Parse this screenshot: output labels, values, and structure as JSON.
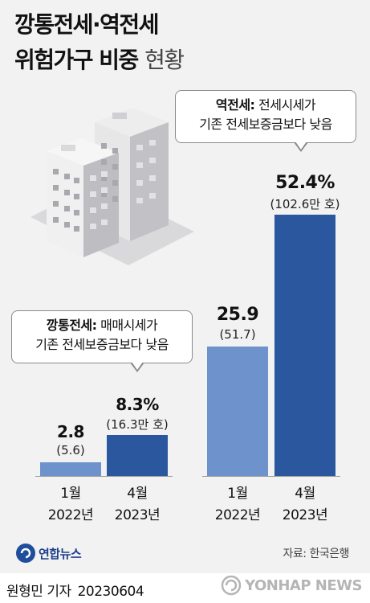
{
  "title": {
    "line1": "깡통전세·역전세",
    "line2_main": "위험가구 비중",
    "line2_light": "현황"
  },
  "callouts": {
    "reverse": {
      "head": "역전세:",
      "text1": " 전세시세가",
      "text2": "기존 전세보증금보다 낮음"
    },
    "empty": {
      "head": "깡통전세:",
      "text1": " 매매시세가",
      "text2": "기존 전세보증금보다 낮음"
    }
  },
  "chart_data": {
    "type": "bar",
    "title": "깡통전세·역전세 위험가구 비중 현황",
    "unit_note": "(만 호)",
    "groups": [
      {
        "name": "깡통전세",
        "bars": [
          {
            "month": "1월",
            "year": "2022년",
            "value": 2.8,
            "value_label": "2.8",
            "count_label": "(5.6)",
            "color": "#6d92cc"
          },
          {
            "month": "4월",
            "year": "2023년",
            "value": 8.3,
            "value_label": "8.3%",
            "count_label": "(16.3만 호)",
            "color": "#2a579e"
          }
        ]
      },
      {
        "name": "역전세",
        "bars": [
          {
            "month": "1월",
            "year": "2022년",
            "value": 25.9,
            "value_label": "25.9",
            "count_label": "(51.7)",
            "color": "#6d92cc"
          },
          {
            "month": "4월",
            "year": "2023년",
            "value": 52.4,
            "value_label": "52.4%",
            "count_label": "(102.6만 호)",
            "color": "#2a579e"
          }
        ]
      }
    ]
  },
  "footer": {
    "logo_text": "연합뉴스",
    "source": "자료: 한국은행",
    "reporter": "원형민 기자",
    "date": "20230604",
    "watermark": "YONHAP NEWS"
  }
}
